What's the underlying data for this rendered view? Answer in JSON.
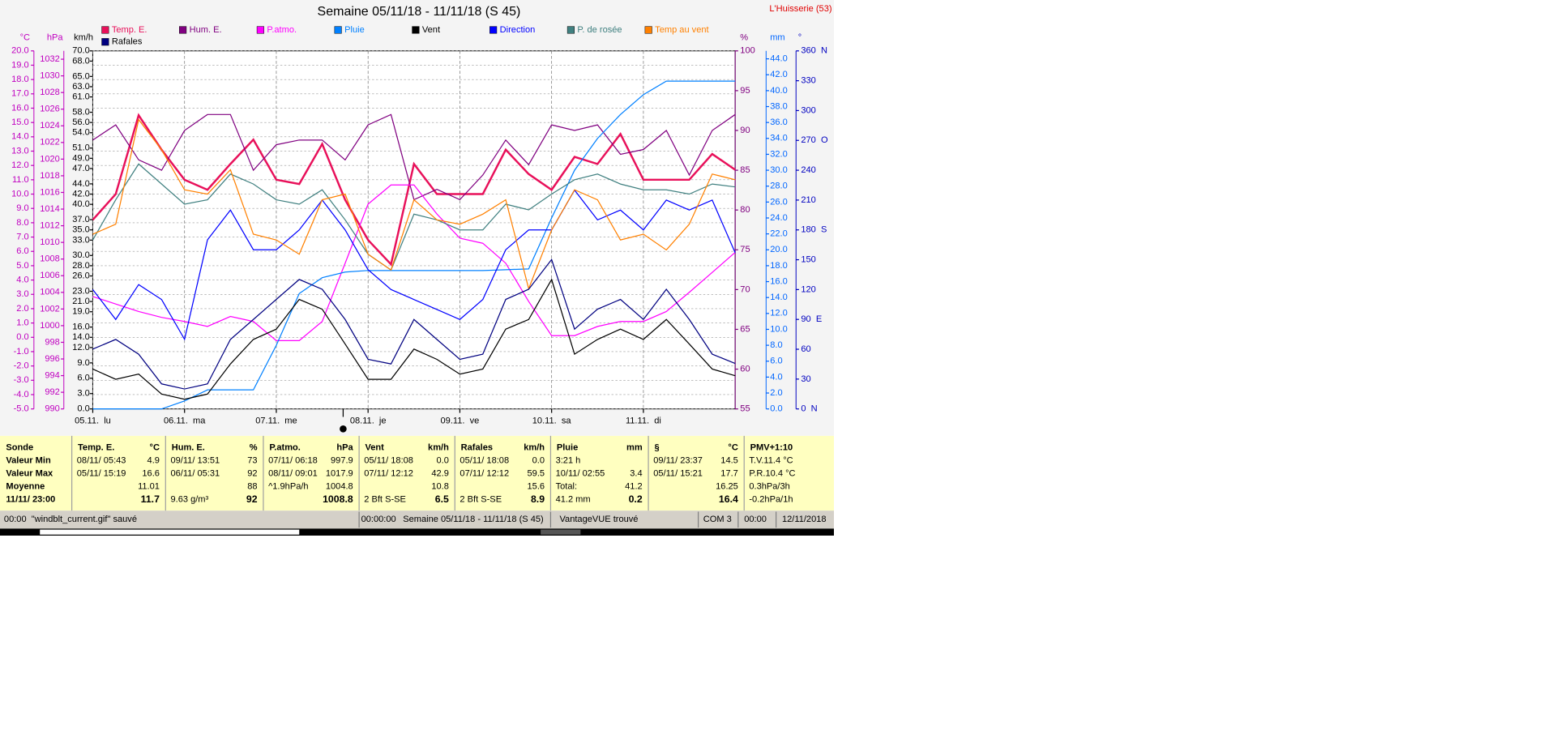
{
  "chart_data": {
    "type": "line",
    "title": "Semaine 05/11/18 - 11/11/18 (S 45)",
    "station": "L'Huisserie (53)",
    "xlim": [
      0,
      168
    ],
    "xticks": [
      {
        "value": 0,
        "label": "05.11.  lu"
      },
      {
        "value": 24,
        "label": "06.11.  ma"
      },
      {
        "value": 48,
        "label": "07.11.  me"
      },
      {
        "value": 72,
        "label": "08.11.  je"
      },
      {
        "value": 96,
        "label": "09.11.  ve"
      },
      {
        "value": 120,
        "label": "10.11.  sa"
      },
      {
        "value": 144,
        "label": "11.11.  di"
      }
    ],
    "grid": true,
    "axes": {
      "temp": {
        "unit": "°C",
        "color": "#c000c0",
        "lim": [
          -5,
          20
        ],
        "ticks": [
          {
            "value": -5,
            "label": "-5.0"
          },
          {
            "value": -4,
            "label": "-4.0"
          },
          {
            "value": -3,
            "label": "-3.0"
          },
          {
            "value": -2,
            "label": "-2.0"
          },
          {
            "value": -1,
            "label": "-1.0"
          },
          {
            "value": 0,
            "label": "0.0"
          },
          {
            "value": 1,
            "label": "1.0"
          },
          {
            "value": 2,
            "label": "2.0"
          },
          {
            "value": 3,
            "label": "3.0"
          },
          {
            "value": 4,
            "label": "4.0"
          },
          {
            "value": 5,
            "label": "5.0"
          },
          {
            "value": 6,
            "label": "6.0"
          },
          {
            "value": 7,
            "label": "7.0"
          },
          {
            "value": 8,
            "label": "8.0"
          },
          {
            "value": 9,
            "label": "9.0"
          },
          {
            "value": 10,
            "label": "10.0"
          },
          {
            "value": 11,
            "label": "11.0"
          },
          {
            "value": 12,
            "label": "12.0"
          },
          {
            "value": 13,
            "label": "13.0"
          },
          {
            "value": 14,
            "label": "14.0"
          },
          {
            "value": 15,
            "label": "15.0"
          },
          {
            "value": 16,
            "label": "16.0"
          },
          {
            "value": 17,
            "label": "17.0"
          },
          {
            "value": 18,
            "label": "18.0"
          },
          {
            "value": 19,
            "label": "19.0"
          },
          {
            "value": 20,
            "label": "20.0"
          }
        ]
      },
      "pressure": {
        "unit": "hPa",
        "color": "#c000c0",
        "lim": [
          990,
          1033
        ],
        "ticks": [
          990,
          992,
          994,
          996,
          998,
          1000,
          1002,
          1004,
          1006,
          1008,
          1010,
          1012,
          1014,
          1016,
          1018,
          1020,
          1022,
          1024,
          1026,
          1028,
          1030,
          1032
        ]
      },
      "speed": {
        "unit": "km/h",
        "color": "#000000",
        "lim": [
          0,
          70
        ],
        "ticks": [
          {
            "value": 0,
            "label": "0.0"
          },
          {
            "value": 3,
            "label": "3.0"
          },
          {
            "value": 6,
            "label": "6.0"
          },
          {
            "value": 9,
            "label": "9.0"
          },
          {
            "value": 12,
            "label": "12.0"
          },
          {
            "value": 14,
            "label": "14.0"
          },
          {
            "value": 16,
            "label": "16.0"
          },
          {
            "value": 19,
            "label": "19.0"
          },
          {
            "value": 21,
            "label": "21.0"
          },
          {
            "value": 23,
            "label": "23.0"
          },
          {
            "value": 26,
            "label": "26.0"
          },
          {
            "value": 28,
            "label": "28.0"
          },
          {
            "value": 30,
            "label": "30.0"
          },
          {
            "value": 33,
            "label": "33.0"
          },
          {
            "value": 35,
            "label": "35.0"
          },
          {
            "value": 37,
            "label": "37.0"
          },
          {
            "value": 40,
            "label": "40.0"
          },
          {
            "value": 42,
            "label": "42.0"
          },
          {
            "value": 44,
            "label": "44.0"
          },
          {
            "value": 47,
            "label": "47.0"
          },
          {
            "value": 49,
            "label": "49.0"
          },
          {
            "value": 51,
            "label": "51.0"
          },
          {
            "value": 54,
            "label": "54.0"
          },
          {
            "value": 56,
            "label": "56.0"
          },
          {
            "value": 58,
            "label": "58.0"
          },
          {
            "value": 61,
            "label": "61.0"
          },
          {
            "value": 63,
            "label": "63.0"
          },
          {
            "value": 65,
            "label": "65.0"
          },
          {
            "value": 68,
            "label": "68.0"
          },
          {
            "value": 70,
            "label": "70.0"
          }
        ]
      },
      "humidity": {
        "unit": "%",
        "color": "#800080",
        "lim": [
          55,
          100
        ],
        "ticks": [
          55,
          60,
          65,
          70,
          75,
          80,
          85,
          90,
          95,
          100
        ]
      },
      "rain": {
        "unit": "mm",
        "color": "#0066ff",
        "lim": [
          0,
          45
        ],
        "ticks": [
          {
            "value": 0,
            "label": "0.0"
          },
          {
            "value": 2,
            "label": "2.0"
          },
          {
            "value": 4,
            "label": "4.0"
          },
          {
            "value": 6,
            "label": "6.0"
          },
          {
            "value": 8,
            "label": "8.0"
          },
          {
            "value": 10,
            "label": "10.0"
          },
          {
            "value": 12,
            "label": "12.0"
          },
          {
            "value": 14,
            "label": "14.0"
          },
          {
            "value": 16,
            "label": "16.0"
          },
          {
            "value": 18,
            "label": "18.0"
          },
          {
            "value": 20,
            "label": "20.0"
          },
          {
            "value": 22,
            "label": "22.0"
          },
          {
            "value": 24,
            "label": "24.0"
          },
          {
            "value": 26,
            "label": "26.0"
          },
          {
            "value": 28,
            "label": "28.0"
          },
          {
            "value": 30,
            "label": "30.0"
          },
          {
            "value": 32,
            "label": "32.0"
          },
          {
            "value": 34,
            "label": "34.0"
          },
          {
            "value": 36,
            "label": "36.0"
          },
          {
            "value": 38,
            "label": "38.0"
          },
          {
            "value": 40,
            "label": "40.0"
          },
          {
            "value": 42,
            "label": "42.0"
          },
          {
            "value": 44,
            "label": "44.0"
          }
        ]
      },
      "direction": {
        "unit": "°",
        "color": "#0000c0",
        "lim": [
          0,
          360
        ],
        "ticks": [
          {
            "value": 0,
            "label": "0  N"
          },
          30,
          60,
          {
            "value": 90,
            "label": "90  E"
          },
          120,
          150,
          {
            "value": 180,
            "label": "180  S"
          },
          210,
          240,
          {
            "value": 270,
            "label": "270  O"
          },
          300,
          330,
          {
            "value": 360,
            "label": "360  N"
          }
        ]
      }
    },
    "x": [
      0,
      6,
      12,
      18,
      24,
      30,
      36,
      42,
      48,
      54,
      60,
      66,
      72,
      78,
      84,
      90,
      96,
      102,
      108,
      114,
      120,
      126,
      132,
      138,
      144,
      150,
      156,
      162,
      168
    ],
    "series": [
      {
        "name": "Temp. E.",
        "color": "#e8105a",
        "axis": "temp",
        "values": [
          8.2,
          10.0,
          15.5,
          13.1,
          11.0,
          10.3,
          12.1,
          13.8,
          11.0,
          10.7,
          13.5,
          9.6,
          6.8,
          5.1,
          12.1,
          10.0,
          10.0,
          10.0,
          13.1,
          11.4,
          10.3,
          12.6,
          12.1,
          14.2,
          11.0,
          11.0,
          11.0,
          12.8,
          11.7
        ]
      },
      {
        "name": "Hum. E.",
        "color": "#800080",
        "axis": "humidity",
        "values": [
          88.8,
          90.7,
          86.3,
          85,
          90,
          92,
          92,
          85,
          88.2,
          88.8,
          88.8,
          86.3,
          90.7,
          92,
          81.3,
          82.6,
          81.3,
          84.4,
          88.8,
          85.7,
          90.7,
          90,
          90.7,
          87,
          87.6,
          90,
          84.4,
          90,
          92
        ]
      },
      {
        "name": "P.atmo.",
        "color": "#ff00ff",
        "axis": "pressure",
        "values": [
          1003.5,
          1002.6,
          1001.7,
          1001,
          1000.5,
          999.9,
          1001.1,
          1000.5,
          998.2,
          998.2,
          1000.5,
          1007.5,
          1014.6,
          1016.9,
          1016.9,
          1013.4,
          1010.5,
          1009.9,
          1007.5,
          1002.9,
          998.8,
          998.8,
          999.9,
          1000.5,
          1000.5,
          1001.7,
          1004,
          1006.4,
          1008.8
        ]
      },
      {
        "name": "Pluie",
        "color": "#0080ff",
        "axis": "rain",
        "values": [
          0,
          0,
          0,
          0,
          1,
          2.4,
          2.4,
          2.4,
          8,
          14.5,
          16.5,
          17.2,
          17.4,
          17.4,
          17.4,
          17.4,
          17.4,
          17.4,
          17.5,
          17.6,
          24,
          30,
          34,
          37,
          39.5,
          41.2,
          41.2,
          41.2,
          41.2
        ]
      },
      {
        "name": "Vent",
        "color": "#000000",
        "axis": "speed",
        "values": [
          7.8,
          5.8,
          6.8,
          2.9,
          1.9,
          2.9,
          8.8,
          13.6,
          15.6,
          21.4,
          19.5,
          12.7,
          5.8,
          5.8,
          11.7,
          9.7,
          6.8,
          7.8,
          15.6,
          17.5,
          25.3,
          10.7,
          13.6,
          15.6,
          13.6,
          17.5,
          12.7,
          7.8,
          6.5
        ]
      },
      {
        "name": "Direction",
        "color": "#0000ff",
        "axis": "direction",
        "values": [
          120,
          90,
          125,
          110,
          70,
          170,
          200,
          160,
          160,
          180,
          210,
          180,
          140,
          120,
          110,
          100,
          90,
          110,
          160,
          180,
          180,
          220,
          190,
          200,
          180,
          210,
          200,
          210,
          157
        ]
      },
      {
        "name": "P. de rosée",
        "color": "#408080",
        "axis": "temp",
        "values": [
          6.8,
          9.6,
          12.1,
          10.7,
          9.3,
          9.6,
          11.4,
          10.7,
          9.6,
          9.3,
          10.3,
          8.2,
          5.8,
          4.7,
          8.6,
          8.2,
          7.5,
          7.5,
          9.3,
          8.9,
          10.0,
          11.0,
          11.4,
          10.7,
          10.3,
          10.3,
          10.0,
          10.7,
          10.5
        ]
      },
      {
        "name": "Temp au vent",
        "color": "#ff8000",
        "axis": "temp",
        "values": [
          7.2,
          7.9,
          15.2,
          13.1,
          10.3,
          10.0,
          11.7,
          7.2,
          6.8,
          5.8,
          9.6,
          10.0,
          5.8,
          4.7,
          9.6,
          8.2,
          7.9,
          8.6,
          9.6,
          3.4,
          7.5,
          10.3,
          9.6,
          6.8,
          7.2,
          6.1,
          7.9,
          11.4,
          11.0
        ]
      },
      {
        "name": "Rafales",
        "color": "#000080",
        "axis": "speed",
        "values": [
          11.7,
          13.6,
          10.7,
          4.9,
          3.9,
          4.9,
          13.6,
          17.5,
          21.4,
          25.3,
          23.4,
          17.5,
          9.7,
          8.8,
          17.5,
          13.6,
          9.7,
          10.7,
          21.4,
          23.4,
          29.2,
          15.6,
          19.5,
          21.4,
          17.5,
          23.4,
          17.5,
          10.7,
          8.9
        ]
      }
    ]
  },
  "table": {
    "columns": [
      {
        "name": "Sonde"
      },
      {
        "name": "Temp. E.",
        "unit": "°C"
      },
      {
        "name": "Hum. E.",
        "unit": "%"
      },
      {
        "name": "P.atmo.",
        "unit": "hPa"
      },
      {
        "name": "Vent",
        "unit": "km/h"
      },
      {
        "name": "Rafales",
        "unit": "km/h"
      },
      {
        "name": "Pluie",
        "unit": "mm"
      },
      {
        "name": "§",
        "unit": "°C"
      },
      {
        "name": "PMV+1:10"
      }
    ],
    "rows": [
      {
        "label": "Valeur Min",
        "cells": [
          {
            "left": "08/11/ 05:43",
            "right": "4.9"
          },
          {
            "left": "09/11/ 13:51",
            "right": "73"
          },
          {
            "left": "07/11/ 06:18",
            "right": "997.9"
          },
          {
            "left": "05/11/ 18:08",
            "right": "0.0"
          },
          {
            "left": "05/11/ 18:08",
            "right": "0.0"
          },
          {
            "left": "3:21 h"
          },
          {
            "left": "09/11/ 23:37",
            "right": "14.5"
          },
          {
            "left": "T.V.11.4 °C"
          }
        ]
      },
      {
        "label": "Valeur Max",
        "cells": [
          {
            "left": "05/11/ 15:19",
            "right": "16.6"
          },
          {
            "left": "06/11/ 05:31",
            "right": "92"
          },
          {
            "left": "08/11/ 09:01",
            "right": "1017.9"
          },
          {
            "left": "07/11/ 12:12",
            "right": "42.9"
          },
          {
            "left": "07/11/ 12:12",
            "right": "59.5"
          },
          {
            "left": "10/11/ 02:55",
            "right": "3.4"
          },
          {
            "left": "05/11/ 15:21",
            "right": "17.7"
          },
          {
            "left": "P.R.10.4 °C"
          }
        ]
      },
      {
        "label": "Moyenne",
        "cells": [
          {
            "right": "11.01"
          },
          {
            "right": "88"
          },
          {
            "left": "^1.9hPa/h",
            "right": "1004.8"
          },
          {
            "right": "10.8"
          },
          {
            "right": "15.6"
          },
          {
            "left": "Total:",
            "right": "41.2"
          },
          {
            "right": "16.25"
          },
          {
            "left": "0.3hPa/3h"
          }
        ]
      },
      {
        "label": "11/11/ 23:00",
        "cells": [
          {
            "right": "11.7"
          },
          {
            "left": "9.63 g/m³",
            "right": "92"
          },
          {
            "right": "1008.8"
          },
          {
            "left": "2 Bft S-SE",
            "right": "6.5"
          },
          {
            "left": "2 Bft S-SE",
            "right": "8.9"
          },
          {
            "left": "41.2 mm",
            "right": "0.2"
          },
          {
            "right": "16.4"
          },
          {
            "left": "-0.2hPa/1h"
          }
        ]
      }
    ]
  },
  "status_bar": {
    "message": "00:00  \"windblt_current.gif\" sauvé",
    "timer": "00:00:00",
    "period": "Semaine 05/11/18 - 11/11/18 (S 45)",
    "console": "VantageVUE trouvé",
    "port": "COM 3",
    "time": "00:00",
    "date": "12/11/2018"
  }
}
